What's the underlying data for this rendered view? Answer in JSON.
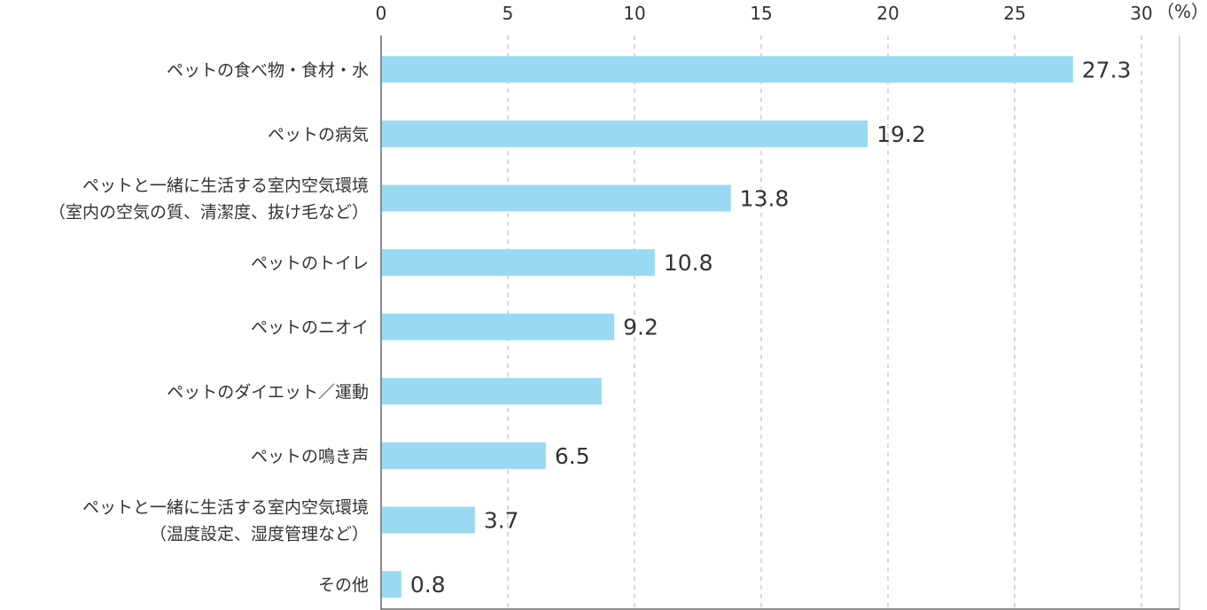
{
  "chart_data": {
    "type": "bar",
    "orientation": "horizontal",
    "categories": [
      [
        "ペットの食べ物・食材・水"
      ],
      [
        "ペットの病気"
      ],
      [
        "ペットと一緒に生活する室内空気環境",
        "（室内の空気の質、清潔度、抜け毛など）"
      ],
      [
        "ペットのトイレ"
      ],
      [
        "ペットのニオイ"
      ],
      [
        "ペットのダイエット／運動"
      ],
      [
        "ペットの鳴き声"
      ],
      [
        "ペットと一緒に生活する室内空気環境",
        "（温度設定、湿度管理など）"
      ],
      [
        "その他"
      ]
    ],
    "values": [
      27.3,
      19.2,
      13.8,
      10.8,
      9.2,
      8.7,
      6.5,
      3.7,
      0.8
    ],
    "value_labels": [
      "27.3",
      "19.2",
      "13.8",
      "10.8",
      "9.2",
      "",
      "6.5",
      "3.7",
      "0.8"
    ],
    "x_ticks": [
      0,
      5,
      10,
      15,
      20,
      25,
      30
    ],
    "xlim": [
      0,
      31.5
    ],
    "unit": "（%）",
    "bar_color": "#99d9f2",
    "grid": "vertical dashed",
    "title": "",
    "xlabel": "",
    "ylabel": ""
  }
}
